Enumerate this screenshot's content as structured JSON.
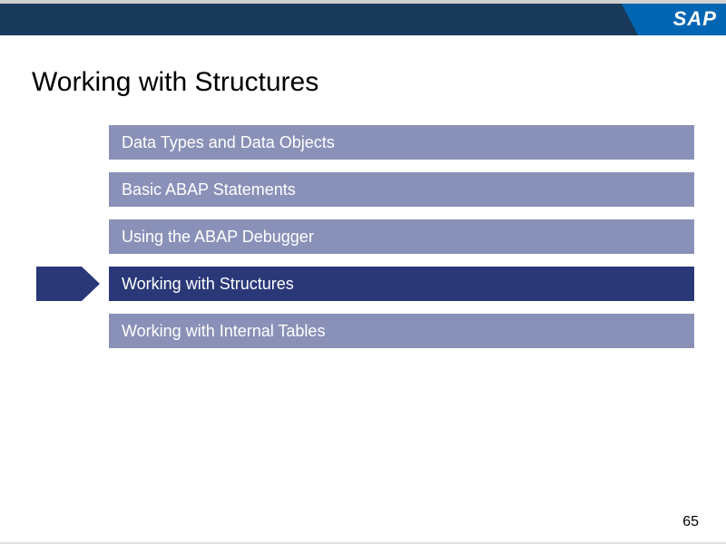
{
  "colors": {
    "header_bar": "#1a3a5c",
    "logo_fill": "#0066b3",
    "inactive_bg": "#8a91b8",
    "active_bg": "#2a3878",
    "arrow_fill": "#2a3878",
    "text_white": "#ffffff",
    "title_color": "#000000"
  },
  "logo": {
    "text": "SAP"
  },
  "title": "Working with Structures",
  "nav_items": [
    {
      "label": "Data Types and Data Objects",
      "active": false
    },
    {
      "label": "Basic ABAP Statements",
      "active": false
    },
    {
      "label": "Using the ABAP Debugger",
      "active": false
    },
    {
      "label": "Working with Structures",
      "active": true
    },
    {
      "label": "Working with Internal Tables",
      "active": false
    }
  ],
  "page_number": "65"
}
